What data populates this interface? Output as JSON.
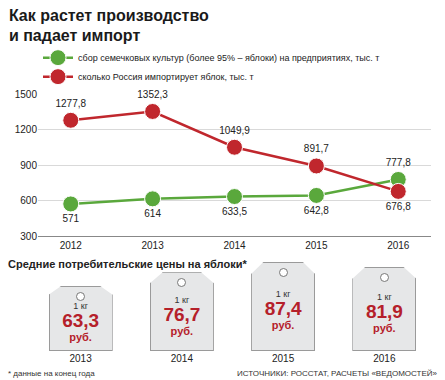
{
  "chart_data": {
    "type": "line",
    "title": "Как растет производство\nи падает импорт",
    "categories": [
      "2012",
      "2013",
      "2014",
      "2015",
      "2016"
    ],
    "series": [
      {
        "name": "сбор семечковых культур (более 95% – яблоки) на предприятиях, тыс. т",
        "color": "#5aa83c",
        "marker": "circle",
        "values": [
          571,
          614,
          633.5,
          642.8,
          777.8
        ],
        "value_labels": [
          "571",
          "614",
          "633,5",
          "642,8",
          "777,8"
        ]
      },
      {
        "name": "сколько Россия импортирует яблок, тыс. т",
        "color": "#c0272d",
        "marker": "circle",
        "values": [
          1277.8,
          1352.3,
          1049.9,
          891.7,
          676.8
        ],
        "value_labels": [
          "1277,8",
          "1352,3",
          "1049,9",
          "891,7",
          "676,8"
        ]
      }
    ],
    "ylim": [
      300,
      1500
    ],
    "yticks": [
      300,
      600,
      900,
      1200,
      1500
    ],
    "grid": true,
    "data_labels": true,
    "legend": "top left"
  },
  "prices": {
    "title": "Средние потребительские цены на яблоки*",
    "unit": "1 кг",
    "currency": "руб.",
    "items": [
      {
        "year": "2013",
        "value": 63.3,
        "label": "63,3"
      },
      {
        "year": "2014",
        "value": 76.7,
        "label": "76,7"
      },
      {
        "year": "2015",
        "value": 87.4,
        "label": "87,4"
      },
      {
        "year": "2016",
        "value": 81.9,
        "label": "81,9"
      }
    ]
  },
  "note": "* данные на конец года",
  "source": "ИСТОЧНИКИ: РОССТАТ, РАСЧЕТЫ «ВЕДОМОСТЕЙ»"
}
